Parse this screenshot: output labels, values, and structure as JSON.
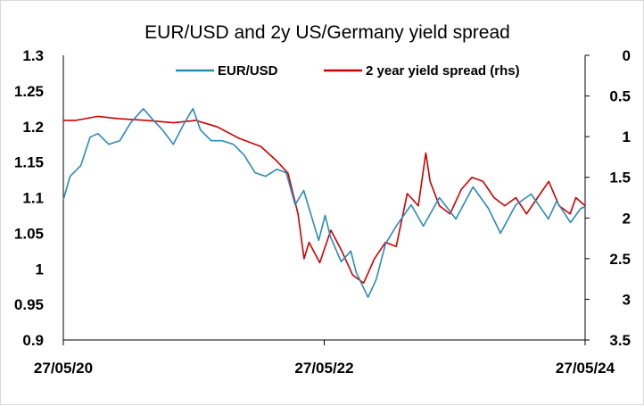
{
  "chart_data": {
    "type": "line",
    "title": "EUR/USD and 2y US/Germany yield spread",
    "xlabel": "",
    "ylabel": "",
    "x_range": [
      "27/05/20",
      "27/05/24"
    ],
    "x_ticks": [
      "27/05/20",
      "27/05/22",
      "27/05/24"
    ],
    "ylim_left": [
      0.9,
      1.3
    ],
    "yticks_left": [
      "1.3",
      "1.25",
      "1.2",
      "1.15",
      "1.1",
      "1.05",
      "1",
      "0.95",
      "0.9"
    ],
    "ylim_right": [
      0,
      3.5
    ],
    "right_axis_inverted": true,
    "yticks_right": [
      "0",
      "0.5",
      "1",
      "1.5",
      "2",
      "2.5",
      "3",
      "3.5"
    ],
    "grid": false,
    "legend_placement": "top-center",
    "colors": {
      "eurusd": "#2a8ab8",
      "spread": "#cc0000"
    },
    "series": [
      {
        "name": "EUR/USD",
        "axis": "left",
        "x": [
          "2020-05-27",
          "2020-06-15",
          "2020-07-15",
          "2020-08-10",
          "2020-09-01",
          "2020-10-01",
          "2020-11-01",
          "2020-12-01",
          "2021-01-06",
          "2021-02-01",
          "2021-03-01",
          "2021-03-31",
          "2021-05-01",
          "2021-05-25",
          "2021-06-15",
          "2021-07-15",
          "2021-08-15",
          "2021-09-15",
          "2021-10-15",
          "2021-11-15",
          "2021-12-15",
          "2022-01-15",
          "2022-02-10",
          "2022-03-07",
          "2022-03-31",
          "2022-05-12",
          "2022-05-30",
          "2022-06-14",
          "2022-07-14",
          "2022-08-10",
          "2022-08-25",
          "2022-09-27",
          "2022-10-20",
          "2022-11-15",
          "2022-12-15",
          "2023-01-26",
          "2023-03-01",
          "2023-04-15",
          "2023-05-31",
          "2023-07-18",
          "2023-08-30",
          "2023-10-03",
          "2023-11-15",
          "2023-12-28",
          "2024-02-14",
          "2024-03-08",
          "2024-04-16",
          "2024-05-15",
          "2024-05-27"
        ],
        "values": [
          1.097,
          1.13,
          1.145,
          1.185,
          1.19,
          1.175,
          1.18,
          1.205,
          1.225,
          1.21,
          1.195,
          1.175,
          1.205,
          1.225,
          1.195,
          1.18,
          1.18,
          1.175,
          1.16,
          1.135,
          1.13,
          1.14,
          1.135,
          1.09,
          1.11,
          1.04,
          1.075,
          1.045,
          1.01,
          1.025,
          0.995,
          0.96,
          0.985,
          1.035,
          1.06,
          1.09,
          1.06,
          1.1,
          1.07,
          1.115,
          1.085,
          1.05,
          1.09,
          1.105,
          1.07,
          1.095,
          1.065,
          1.085,
          1.087
        ]
      },
      {
        "name": "2 year yield spread (rhs)",
        "axis": "right",
        "x": [
          "2020-05-27",
          "2020-07-01",
          "2020-09-01",
          "2020-11-01",
          "2021-01-15",
          "2021-04-01",
          "2021-06-01",
          "2021-08-01",
          "2021-10-01",
          "2021-12-01",
          "2022-01-15",
          "2022-02-15",
          "2022-03-15",
          "2022-04-01",
          "2022-04-15",
          "2022-05-15",
          "2022-06-15",
          "2022-07-15",
          "2022-08-15",
          "2022-09-15",
          "2022-10-15",
          "2022-11-15",
          "2022-12-15",
          "2023-01-15",
          "2023-02-15",
          "2023-03-08",
          "2023-03-20",
          "2023-04-15",
          "2023-05-15",
          "2023-06-15",
          "2023-07-15",
          "2023-08-15",
          "2023-09-15",
          "2023-10-15",
          "2023-11-15",
          "2023-12-15",
          "2024-01-15",
          "2024-02-15",
          "2024-03-15",
          "2024-04-15",
          "2024-05-01",
          "2024-05-27"
        ],
        "values": [
          0.8,
          0.8,
          0.75,
          0.78,
          0.8,
          0.83,
          0.8,
          0.88,
          1.02,
          1.12,
          1.3,
          1.45,
          1.95,
          2.5,
          2.3,
          2.55,
          2.15,
          2.4,
          2.7,
          2.8,
          2.5,
          2.3,
          2.35,
          1.7,
          1.85,
          1.2,
          1.55,
          1.85,
          1.95,
          1.65,
          1.5,
          1.55,
          1.75,
          1.85,
          1.75,
          1.95,
          1.75,
          1.55,
          1.85,
          1.95,
          1.75,
          1.85
        ]
      }
    ]
  }
}
